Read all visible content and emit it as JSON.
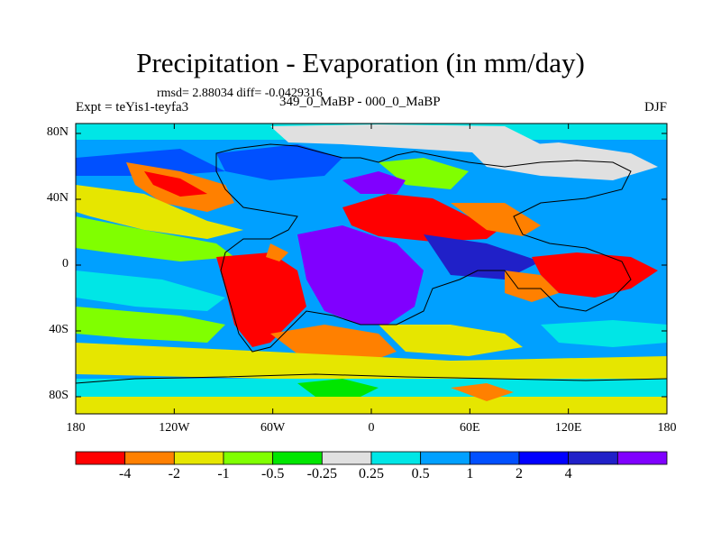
{
  "title": "Precipitation - Evaporation (in mm/day)",
  "stats": "rmsd= 2.88034 diff= -0.0429316",
  "experiment": "Expt = teYis1-teyfa3",
  "subtitle": "349_0_MaBP - 000_0_MaBP",
  "season": "DJF",
  "axes": {
    "y_ticks": [
      "80N",
      "40N",
      "0",
      "40S",
      "80S"
    ],
    "x_ticks": [
      "180",
      "120W",
      "60W",
      "0",
      "60E",
      "120E",
      "180"
    ]
  },
  "colorbar": {
    "colors": [
      "#ff0000",
      "#ff8000",
      "#e6e600",
      "#80ff00",
      "#00e600",
      "#e0e0e0",
      "#00e6e6",
      "#00a0ff",
      "#0050ff",
      "#0000ff",
      "#2020c8",
      "#8000ff"
    ],
    "labels": [
      "-4",
      "-2",
      "-1",
      "-0.5",
      "-0.25",
      "0.25",
      "0.5",
      "1",
      "2",
      "4"
    ]
  }
}
